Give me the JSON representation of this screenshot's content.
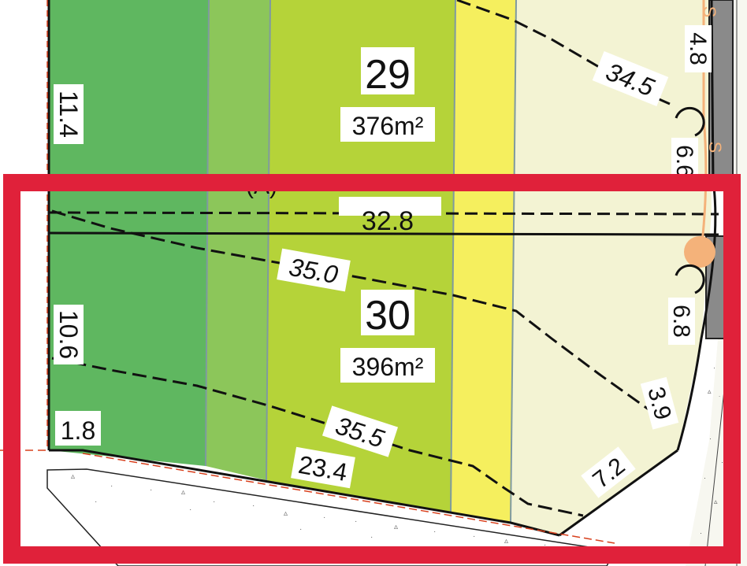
{
  "lots": [
    {
      "number": "29",
      "area": "376m²"
    },
    {
      "number": "30",
      "area": "396m²"
    }
  ],
  "contours": [
    "34.5",
    "35.0",
    "35.5"
  ],
  "dimensions": {
    "top_left": "11.4",
    "top_right": "4.8",
    "top_right_arc": "6.6",
    "shared_boundary": "32.8",
    "mid_left": "10.6",
    "bottom_left": "1.8",
    "bottom_frontage": "23.4",
    "right_arc": "6.8",
    "right_side": "3.9",
    "corner_truncation": "7.2"
  },
  "markers": {
    "sewer": "S",
    "easement": "(A)"
  },
  "colors": {
    "zone_dark_green": "#5fb760",
    "zone_mid_green": "#8cc65a",
    "zone_lime": "#b5d339",
    "zone_yellow": "#f5ef5e",
    "zone_cream": "#f3f3d3",
    "highlight_box": "#e0213a",
    "sewer_line": "#f4b27a"
  }
}
